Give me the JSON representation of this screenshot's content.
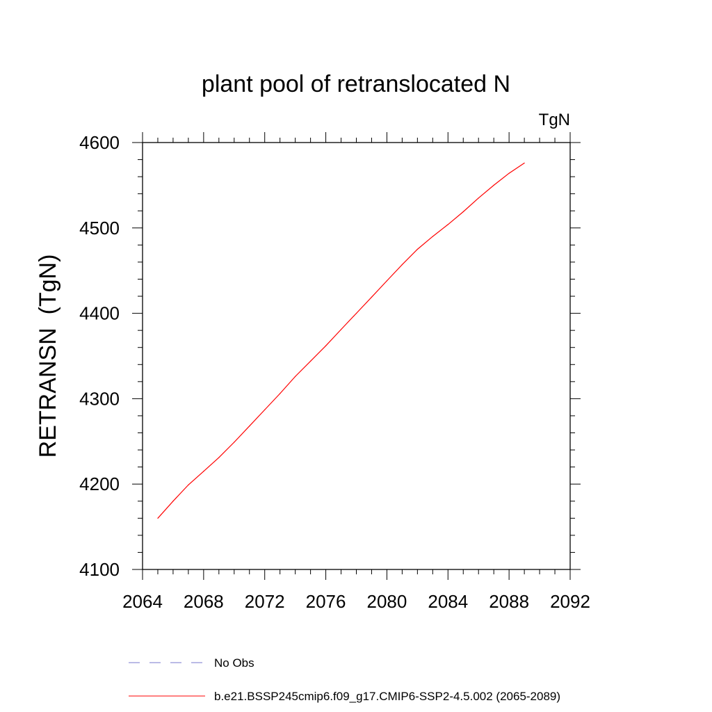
{
  "chart_data": {
    "type": "line",
    "title": "plant pool of retranslocated N",
    "units": "TgN",
    "xlabel": "",
    "ylabel": "RETRANSN  (TgN)",
    "xlim": [
      2064,
      2092
    ],
    "ylim": [
      4100,
      4600
    ],
    "x_ticks": [
      "2064",
      "2068",
      "2072",
      "2076",
      "2080",
      "2084",
      "2088",
      "2092"
    ],
    "y_ticks": [
      "4100",
      "4200",
      "4300",
      "4400",
      "4500",
      "4600"
    ],
    "series": [
      {
        "name": "b.e21.BSSP245cmip6.f09_g17.CMIP6-SSP2-4.5.002 (2065-2089)",
        "color": "#ff0000",
        "style": "solid",
        "x": [
          2065,
          2066,
          2067,
          2068,
          2069,
          2070,
          2071,
          2072,
          2073,
          2074,
          2075,
          2076,
          2077,
          2078,
          2079,
          2080,
          2081,
          2082,
          2083,
          2084,
          2085,
          2086,
          2087,
          2088,
          2089
        ],
        "values": [
          4160,
          4180,
          4199,
          4215,
          4231,
          4249,
          4268,
          4287,
          4306,
          4326,
          4344,
          4362,
          4381,
          4400,
          4419,
          4438,
          4457,
          4475,
          4490,
          4504,
          4519,
          4535,
          4550,
          4564,
          4576
        ]
      }
    ],
    "legend": [
      {
        "label": "No Obs",
        "color": "#7777cc",
        "style": "dashed"
      },
      {
        "label": "b.e21.BSSP245cmip6.f09_g17.CMIP6-SSP2-4.5.002 (2065-2089)",
        "color": "#ff0000",
        "style": "solid"
      }
    ],
    "legend_position": "bottom"
  }
}
